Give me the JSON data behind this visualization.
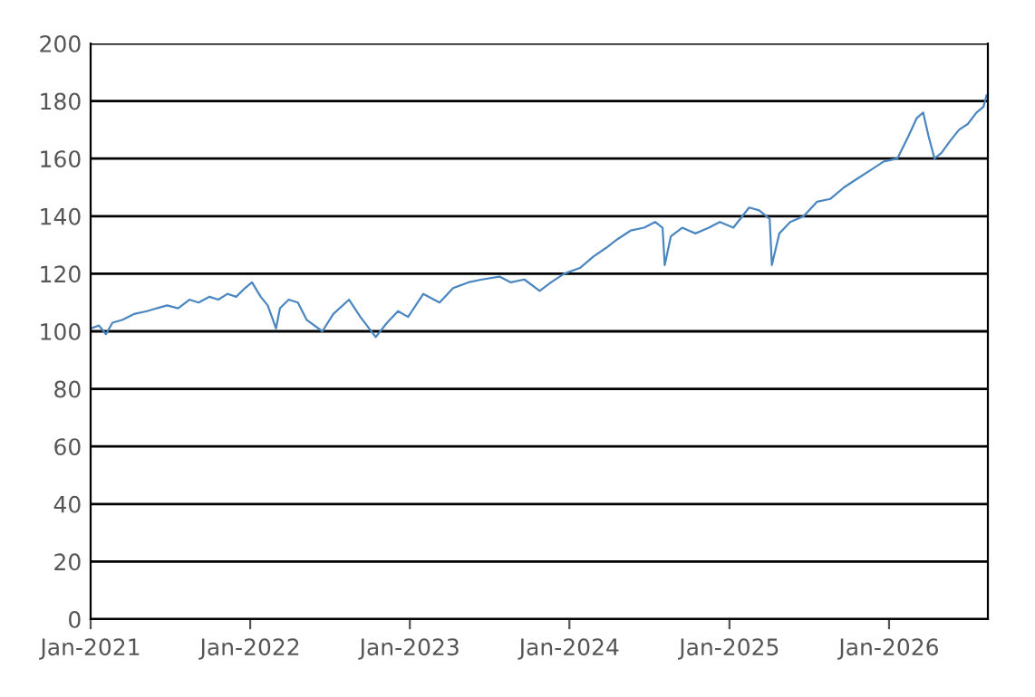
{
  "chart_data": {
    "type": "line",
    "x": [
      "2021-01-01",
      "2021-01-20",
      "2021-02-05",
      "2021-02-20",
      "2021-03-15",
      "2021-04-10",
      "2021-05-10",
      "2021-06-01",
      "2021-06-25",
      "2021-07-20",
      "2021-08-15",
      "2021-09-05",
      "2021-09-30",
      "2021-10-20",
      "2021-11-10",
      "2021-11-30",
      "2021-12-20",
      "2022-01-05",
      "2022-01-25",
      "2022-02-10",
      "2022-03-01",
      "2022-03-10",
      "2022-03-30",
      "2022-04-20",
      "2022-05-10",
      "2022-06-15",
      "2022-07-10",
      "2022-08-15",
      "2022-09-10",
      "2022-09-30",
      "2022-10-15",
      "2022-11-10",
      "2022-12-05",
      "2022-12-28",
      "2023-02-01",
      "2023-03-10",
      "2023-04-10",
      "2023-05-15",
      "2023-06-15",
      "2023-07-25",
      "2023-08-20",
      "2023-09-20",
      "2023-10-25",
      "2023-11-20",
      "2023-12-20",
      "2024-01-25",
      "2024-02-25",
      "2024-03-25",
      "2024-04-20",
      "2024-05-20",
      "2024-06-20",
      "2024-07-15",
      "2024-08-01",
      "2024-08-06",
      "2024-08-20",
      "2024-09-15",
      "2024-10-15",
      "2024-11-15",
      "2024-12-10",
      "2025-01-10",
      "2025-02-15",
      "2025-03-10",
      "2025-04-03",
      "2025-04-08",
      "2025-04-25",
      "2025-05-20",
      "2025-06-20",
      "2025-07-20",
      "2025-08-20",
      "2025-09-20",
      "2025-10-20",
      "2025-11-20",
      "2025-12-20",
      "2026-01-20",
      "2026-02-15",
      "2026-03-05",
      "2026-03-20",
      "2026-04-01",
      "2026-04-15",
      "2026-05-01",
      "2026-05-20",
      "2026-06-10",
      "2026-06-30",
      "2026-07-20",
      "2026-08-05",
      "2026-08-12"
    ],
    "series": [
      {
        "color": "#4a86c0",
        "values": [
          101,
          102,
          99,
          103,
          104,
          106,
          107,
          108,
          109,
          108,
          111,
          110,
          112,
          111,
          113,
          112,
          115,
          117,
          112,
          109,
          101,
          108,
          111,
          110,
          104,
          100,
          106,
          111,
          105,
          101,
          98,
          103,
          107,
          105,
          113,
          110,
          115,
          117,
          118,
          119,
          117,
          118,
          114,
          117,
          120,
          122,
          126,
          129,
          132,
          135,
          136,
          138,
          136,
          123,
          133,
          136,
          134,
          136,
          138,
          136,
          143,
          142,
          139,
          123,
          134,
          138,
          140,
          145,
          146,
          150,
          153,
          156,
          159,
          160,
          168,
          174,
          176,
          168,
          160,
          162,
          166,
          170,
          172,
          176,
          178,
          182
        ]
      }
    ],
    "xlim": [
      "2021-01-01",
      "2026-08-15"
    ],
    "ylim": [
      0,
      200
    ],
    "yticks": [
      0,
      20,
      40,
      60,
      80,
      100,
      120,
      140,
      160,
      180,
      200
    ],
    "xticks": [
      {
        "value": "2021-01-01",
        "label": "Jan-2021"
      },
      {
        "value": "2022-01-01",
        "label": "Jan-2022"
      },
      {
        "value": "2023-01-01",
        "label": "Jan-2023"
      },
      {
        "value": "2024-01-01",
        "label": "Jan-2024"
      },
      {
        "value": "2025-01-01",
        "label": "Jan-2025"
      },
      {
        "value": "2026-01-01",
        "label": "Jan-2026"
      }
    ],
    "grid": "y",
    "legend": false,
    "marker": "none",
    "line_style": "solid"
  }
}
